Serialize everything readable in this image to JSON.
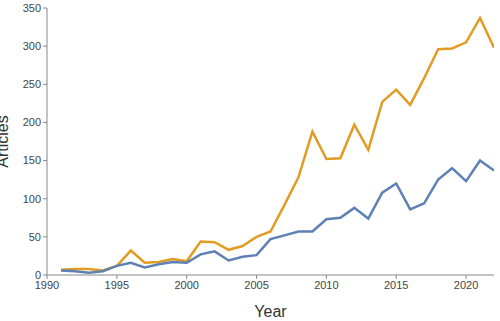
{
  "chart_data": {
    "type": "line",
    "x_label": "Year",
    "y_label": "Articles",
    "x": [
      1991,
      1992,
      1993,
      1994,
      1995,
      1996,
      1997,
      1998,
      1999,
      2000,
      2001,
      2002,
      2003,
      2004,
      2005,
      2006,
      2007,
      2008,
      2009,
      2010,
      2011,
      2012,
      2013,
      2014,
      2015,
      2016,
      2017,
      2018,
      2019,
      2020,
      2021,
      2022
    ],
    "series": [
      {
        "color": "#e19c24",
        "values": [
          7,
          8,
          8,
          6,
          12,
          32,
          16,
          17,
          21,
          18,
          44,
          43,
          33,
          38,
          50,
          57,
          92,
          128,
          188,
          152,
          153,
          197,
          164,
          227,
          243,
          223,
          258,
          296,
          297,
          305,
          337,
          298
        ]
      },
      {
        "color": "#5e81b5",
        "values": [
          6,
          5,
          3,
          5,
          12,
          16,
          10,
          14,
          17,
          16,
          27,
          31,
          19,
          24,
          26,
          47,
          52,
          57,
          57,
          73,
          75,
          88,
          74,
          108,
          120,
          86,
          94,
          125,
          140,
          123,
          150,
          137
        ]
      }
    ],
    "xlim": [
      1990,
      2022
    ],
    "xticks": [
      1990,
      1995,
      2000,
      2005,
      2010,
      2015,
      2020
    ],
    "ylim": [
      0,
      350
    ],
    "yticks": [
      0,
      50,
      100,
      150,
      200,
      250,
      300,
      350
    ],
    "grid": false
  }
}
